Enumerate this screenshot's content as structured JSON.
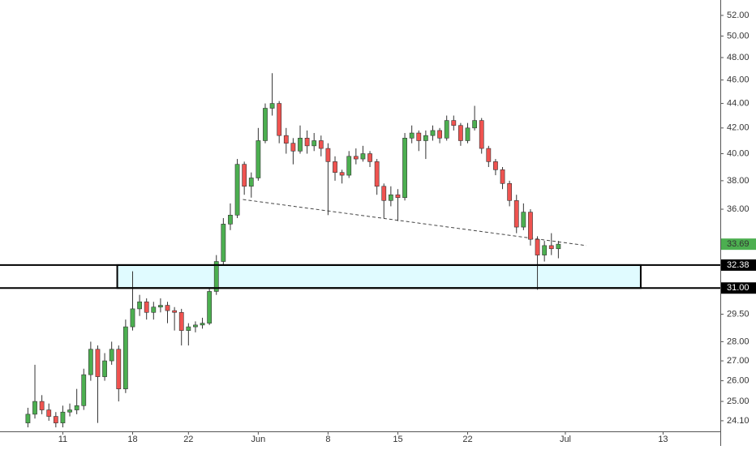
{
  "chart_data": {
    "type": "candlestick",
    "log_scale": true,
    "xlim": [
      -4.5,
      47.1
    ],
    "ylim": [
      23.62,
      53.54
    ],
    "xticks": [
      {
        "value": 0,
        "label": "11"
      },
      {
        "value": 5,
        "label": "18"
      },
      {
        "value": 9,
        "label": "22"
      },
      {
        "value": 14,
        "label": "Jun"
      },
      {
        "value": 19,
        "label": "8"
      },
      {
        "value": 24,
        "label": "15"
      },
      {
        "value": 29,
        "label": "22"
      },
      {
        "value": 36,
        "label": "Jul"
      },
      {
        "value": 43,
        "label": "13"
      }
    ],
    "yticks": [
      {
        "value": 52,
        "label": "52.00"
      },
      {
        "value": 50,
        "label": "50.00"
      },
      {
        "value": 48,
        "label": "48.00"
      },
      {
        "value": 46,
        "label": "46.00"
      },
      {
        "value": 44,
        "label": "44.00"
      },
      {
        "value": 42,
        "label": "42.00"
      },
      {
        "value": 40,
        "label": "40.00"
      },
      {
        "value": 38,
        "label": "38.00"
      },
      {
        "value": 36,
        "label": "36.00"
      },
      {
        "value": 29.5,
        "label": "29.50"
      },
      {
        "value": 28,
        "label": "28.00"
      },
      {
        "value": 27,
        "label": "27.00"
      },
      {
        "value": 26,
        "label": "26.00"
      },
      {
        "value": 25,
        "label": "25.00"
      },
      {
        "value": 24.1,
        "label": "24.10"
      }
    ],
    "up_color": "#4caf50",
    "down_color": "#ef5350",
    "candles": {
      "x": [
        -2.5,
        -2,
        -1.5,
        -1,
        -0.5,
        0,
        0.5,
        1,
        1.5,
        2,
        2.5,
        3,
        3.5,
        4,
        4.5,
        5,
        5.5,
        6,
        6.5,
        7,
        7.5,
        8,
        8.5,
        9,
        9.5,
        10,
        10.5,
        11,
        11.5,
        12,
        12.5,
        13,
        13.5,
        14,
        14.5,
        15,
        15.5,
        16,
        16.5,
        17,
        17.5,
        18,
        18.5,
        19,
        19.5,
        20,
        20.5,
        21,
        21.5,
        22,
        22.5,
        23,
        23.5,
        24,
        24.5,
        25,
        25.5,
        26,
        26.5,
        27,
        27.5,
        28,
        28.5,
        29,
        29.5,
        30,
        30.5,
        31,
        31.5,
        32,
        32.5,
        33,
        33.5,
        34,
        34.5,
        35,
        35.5
      ],
      "open": [
        24.0,
        24.4,
        25.0,
        24.6,
        24.3,
        24.0,
        24.5,
        24.6,
        24.8,
        26.3,
        27.6,
        26.2,
        27.0,
        27.6,
        25.6,
        28.8,
        29.8,
        30.2,
        29.6,
        29.9,
        30.0,
        29.7,
        29.6,
        28.6,
        28.8,
        28.9,
        29.0,
        30.8,
        32.6,
        35.0,
        35.6,
        39.2,
        37.6,
        38.2,
        41.0,
        43.6,
        44.0,
        41.4,
        40.8,
        40.2,
        41.2,
        40.6,
        41.0,
        40.4,
        39.4,
        38.6,
        38.4,
        39.8,
        39.6,
        40.0,
        39.4,
        37.6,
        36.6,
        37.0,
        36.8,
        41.2,
        41.6,
        41.0,
        41.4,
        41.8,
        41.2,
        42.6,
        42.2,
        41.0,
        42.0,
        42.6,
        40.4,
        39.4,
        38.8,
        37.8,
        36.6,
        34.8,
        35.8,
        34.0,
        33.0,
        33.6,
        33.4
      ],
      "high": [
        24.7,
        26.8,
        25.3,
        24.9,
        24.5,
        24.8,
        24.9,
        25.6,
        26.6,
        28.0,
        27.8,
        27.4,
        28.0,
        27.8,
        29.2,
        32.0,
        30.6,
        30.4,
        30.2,
        30.4,
        30.2,
        29.9,
        29.8,
        29.0,
        29.1,
        29.3,
        31.0,
        33.0,
        35.4,
        36.4,
        39.6,
        39.4,
        38.6,
        42.0,
        44.0,
        46.6,
        44.2,
        42.0,
        41.2,
        42.2,
        41.8,
        41.6,
        41.4,
        40.8,
        39.8,
        38.8,
        40.2,
        40.4,
        40.6,
        40.2,
        39.6,
        37.8,
        37.6,
        37.4,
        41.6,
        42.2,
        41.8,
        41.8,
        42.2,
        42.0,
        43.0,
        43.0,
        42.4,
        42.4,
        43.8,
        42.8,
        40.6,
        39.6,
        39.0,
        38.0,
        37.0,
        36.4,
        36.0,
        34.2,
        33.9,
        34.4,
        33.9
      ],
      "low": [
        23.8,
        24.2,
        24.4,
        24.1,
        23.8,
        23.8,
        24.3,
        24.4,
        24.6,
        26.0,
        24.0,
        26.0,
        26.8,
        25.0,
        25.4,
        28.6,
        29.4,
        29.2,
        29.2,
        29.6,
        29.0,
        28.6,
        27.8,
        27.8,
        28.5,
        28.7,
        28.9,
        30.6,
        32.4,
        34.6,
        35.4,
        37.0,
        36.8,
        38.0,
        40.8,
        43.0,
        40.8,
        40.0,
        39.2,
        40.0,
        40.0,
        40.2,
        39.8,
        35.6,
        38.0,
        37.8,
        38.2,
        39.2,
        39.4,
        39.0,
        37.0,
        35.4,
        36.2,
        35.2,
        36.6,
        40.8,
        40.2,
        39.6,
        41.0,
        40.8,
        41.0,
        41.8,
        40.6,
        40.8,
        41.8,
        40.0,
        39.0,
        38.4,
        37.4,
        36.2,
        34.4,
        34.6,
        33.6,
        30.9,
        32.6,
        33.0,
        32.8
      ],
      "close": [
        24.4,
        25.0,
        24.6,
        24.3,
        24.0,
        24.5,
        24.6,
        24.8,
        26.3,
        27.6,
        26.2,
        27.0,
        27.6,
        25.6,
        28.8,
        29.8,
        30.2,
        29.6,
        29.9,
        30.0,
        29.7,
        29.6,
        28.6,
        28.8,
        28.9,
        29.0,
        30.8,
        32.6,
        35.0,
        35.6,
        39.2,
        37.6,
        38.2,
        41.0,
        43.6,
        44.0,
        41.4,
        40.8,
        40.2,
        41.2,
        40.6,
        41.0,
        40.4,
        39.4,
        38.6,
        38.4,
        39.8,
        39.6,
        40.0,
        39.4,
        37.6,
        36.6,
        37.0,
        36.8,
        41.2,
        41.6,
        41.0,
        41.4,
        41.8,
        41.2,
        42.6,
        42.2,
        41.0,
        42.0,
        42.6,
        40.4,
        39.4,
        38.8,
        37.8,
        36.6,
        34.8,
        35.8,
        34.0,
        33.0,
        33.6,
        33.4,
        33.69
      ]
    },
    "horizontal_lines": [
      {
        "value": 32.38,
        "label": "32.38"
      },
      {
        "value": 31,
        "label": "31.00"
      }
    ],
    "zone": {
      "x": [
        3.9,
        41.4
      ],
      "color": "#e0fbff"
    },
    "trendline": {
      "x": [
        12.9,
        37.5
      ],
      "y": [
        36.67,
        33.6
      ]
    },
    "last_price": {
      "value": 33.69,
      "color": "#4caf50"
    }
  }
}
